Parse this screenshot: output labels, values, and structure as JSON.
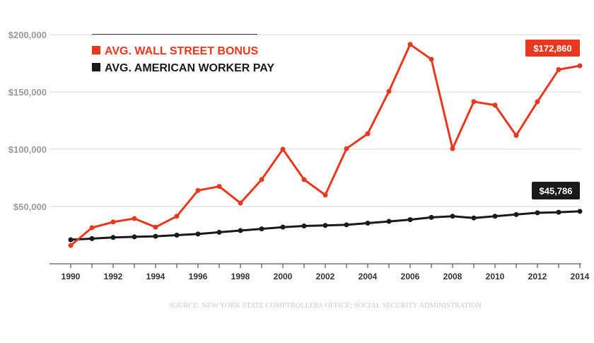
{
  "chart_data": {
    "type": "line",
    "x": [
      1990,
      1991,
      1992,
      1993,
      1994,
      1995,
      1996,
      1997,
      1998,
      1999,
      2000,
      2001,
      2002,
      2003,
      2004,
      2005,
      2006,
      2007,
      2008,
      2009,
      2010,
      2011,
      2012,
      2013,
      2014
    ],
    "series": [
      {
        "name": "AVG. WALL STREET BONUS",
        "color": "#e8391e",
        "values": [
          16000,
          31500,
          36500,
          39500,
          32000,
          41500,
          64000,
          67500,
          53000,
          73500,
          100000,
          73500,
          60000,
          100500,
          113500,
          150500,
          191500,
          178500,
          100500,
          141500,
          138500,
          112000,
          141500,
          169500,
          172860
        ]
      },
      {
        "name": "AVG. AMERICAN WORKER PAY",
        "color": "#1a1a1a",
        "values": [
          21000,
          22000,
          23000,
          23500,
          24000,
          25000,
          26000,
          27500,
          29000,
          30500,
          32000,
          33000,
          33500,
          34000,
          35500,
          37000,
          38500,
          40500,
          41500,
          40000,
          41500,
          43000,
          44500,
          45000,
          45786
        ]
      }
    ],
    "ylim": [
      0,
      200000
    ],
    "ytick_values": [
      50000,
      100000,
      150000,
      200000
    ],
    "ytick_labels": [
      "$50,000",
      "$100,000",
      "$150,000",
      "$200,000"
    ],
    "xtick_values": [
      1990,
      1992,
      1994,
      1996,
      1998,
      2000,
      2002,
      2004,
      2006,
      2008,
      2010,
      2012,
      2014
    ],
    "xtick_labels": [
      "1990",
      "1992",
      "1994",
      "1996",
      "1998",
      "2000",
      "2002",
      "2004",
      "2006",
      "2008",
      "2010",
      "2012",
      "2014"
    ],
    "callouts": [
      {
        "series": 0,
        "label": "$172,860",
        "bg": "#e8391e"
      },
      {
        "series": 1,
        "label": "$45,786",
        "bg": "#1a1a1a"
      }
    ],
    "source": "SOURCE: NEW YORK STATE COMPTROLLERS OFFICE; SOCIAL SECURITY ADMINISTRATION",
    "grid": true,
    "legend_position": "top-left"
  }
}
